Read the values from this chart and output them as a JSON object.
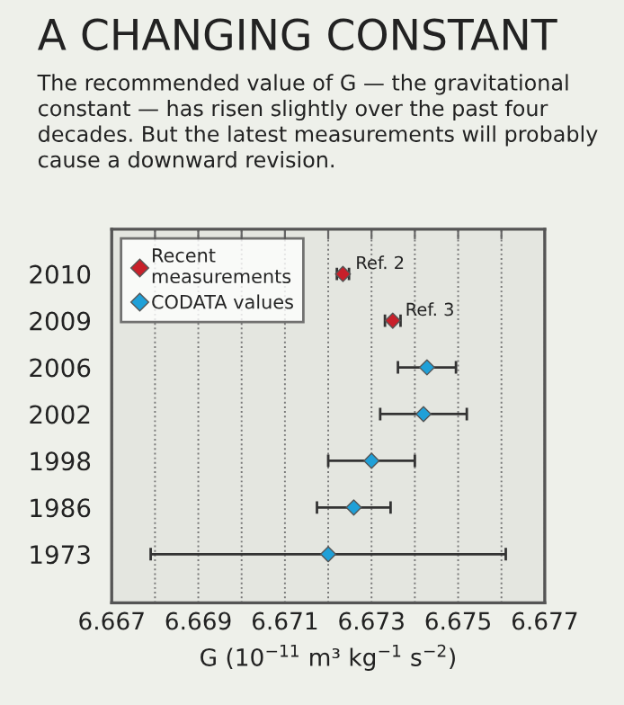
{
  "chart_data": {
    "type": "scatter",
    "orientation": "horizontal",
    "title": "A CHANGING CONSTANT",
    "subtitle": "The recommended value of G — the gravitational constant — has risen slightly over the past four decades. But the latest measurements will probably cause a downward revision.",
    "xlabel": "G (10$^{−11}$ m³ kg$^{−1}$ s$^{−2}$)",
    "categories": [
      "2010",
      "2009",
      "2006",
      "2002",
      "1998",
      "1986",
      "1973"
    ],
    "series": [
      {
        "name": "Recent measurements",
        "color": "#c8202a",
        "values": [
          6.67234,
          6.67349,
          null,
          null,
          null,
          null,
          null
        ],
        "errors": [
          0.00014,
          0.00018,
          null,
          null,
          null,
          null,
          null
        ]
      },
      {
        "name": "CODATA values",
        "color": "#1fa0d8",
        "values": [
          null,
          null,
          6.67428,
          6.6742,
          6.673,
          6.67259,
          6.672
        ],
        "errors": [
          null,
          null,
          0.00067,
          0.001,
          0.001,
          0.00085,
          0.0041
        ]
      }
    ],
    "annotations": [
      {
        "text": "Ref. 2",
        "x": 6.67234,
        "y": "2010"
      },
      {
        "text": "Ref. 3",
        "x": 6.67349,
        "y": "2009"
      }
    ],
    "xlim": [
      6.667,
      6.677
    ],
    "xticks": [
      6.667,
      {
        "value": 6.668,
        "label": null
      },
      6.669,
      {
        "value": 6.67,
        "label": null
      },
      6.671,
      {
        "value": 6.672,
        "label": null
      },
      6.673,
      {
        "value": 6.674,
        "label": null
      },
      6.675,
      {
        "value": 6.676,
        "label": null
      },
      6.677
    ],
    "grid": "x",
    "legend": "top left",
    "marker": "diamond"
  }
}
